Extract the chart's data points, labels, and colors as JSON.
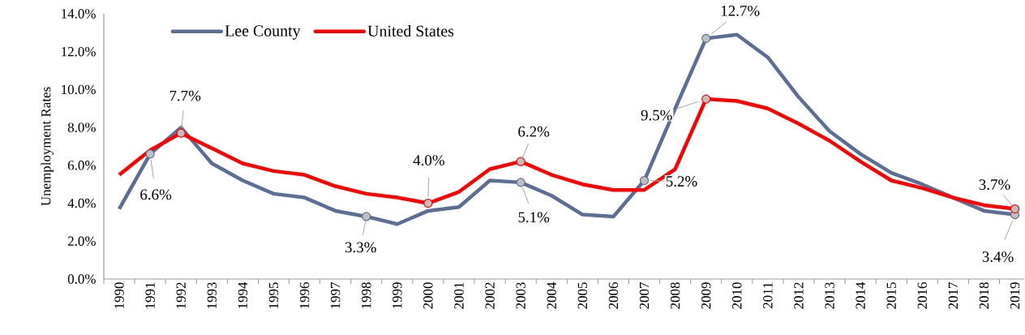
{
  "chart_data": {
    "type": "line",
    "ylabel": "Unemployment Rates",
    "categories": [
      "1990",
      "1991",
      "1992",
      "1993",
      "1994",
      "1995",
      "1996",
      "1997",
      "1998",
      "1999",
      "2000",
      "2001",
      "2002",
      "2003",
      "2004",
      "2005",
      "2006",
      "2007",
      "2008",
      "2009",
      "2010",
      "2011",
      "2012",
      "2013",
      "2014",
      "2015",
      "2016",
      "2017",
      "2018",
      "2019"
    ],
    "series": [
      {
        "name": "Lee County",
        "color": "#5b6f96",
        "values": [
          3.7,
          6.6,
          8.0,
          6.1,
          5.2,
          4.5,
          4.3,
          3.6,
          3.3,
          2.9,
          3.6,
          3.8,
          5.2,
          5.1,
          4.4,
          3.4,
          3.3,
          5.2,
          9.0,
          12.7,
          12.9,
          11.7,
          9.6,
          7.8,
          6.6,
          5.6,
          5.0,
          4.3,
          3.6,
          3.4
        ],
        "value_labels": [
          null,
          "6.6%",
          null,
          null,
          null,
          null,
          null,
          null,
          "3.3%",
          null,
          null,
          null,
          null,
          "5.1%",
          null,
          null,
          null,
          "5.2%",
          null,
          "12.7%",
          null,
          null,
          null,
          null,
          null,
          null,
          null,
          null,
          null,
          "3.4%"
        ]
      },
      {
        "name": "United States",
        "color": "#ff0000",
        "values": [
          5.5,
          6.8,
          7.7,
          6.9,
          6.1,
          5.7,
          5.5,
          4.9,
          4.5,
          4.3,
          4.0,
          4.6,
          5.8,
          6.2,
          5.5,
          5.0,
          4.7,
          4.7,
          5.8,
          9.5,
          9.4,
          9.0,
          8.2,
          7.3,
          6.2,
          5.2,
          4.8,
          4.3,
          3.9,
          3.7
        ],
        "value_labels": [
          null,
          null,
          "7.7%",
          null,
          null,
          null,
          null,
          null,
          null,
          null,
          "4.0%",
          null,
          null,
          "6.2%",
          null,
          null,
          null,
          null,
          null,
          "9.5%",
          null,
          null,
          null,
          null,
          null,
          null,
          null,
          null,
          null,
          "3.7%"
        ]
      }
    ],
    "ylim": [
      0,
      14
    ],
    "yticks": [
      {
        "value": 0,
        "label": "0.0%"
      },
      {
        "value": 2,
        "label": "2.0%"
      },
      {
        "value": 4,
        "label": "4.0%"
      },
      {
        "value": 6,
        "label": "6.0%"
      },
      {
        "value": 8,
        "label": "8.0%"
      },
      {
        "value": 10,
        "label": "10.0%"
      },
      {
        "value": 12,
        "label": "12.0%"
      },
      {
        "value": 14,
        "label": "14.0%"
      }
    ],
    "grid": false,
    "legend": "top left",
    "line_style": "solid"
  }
}
